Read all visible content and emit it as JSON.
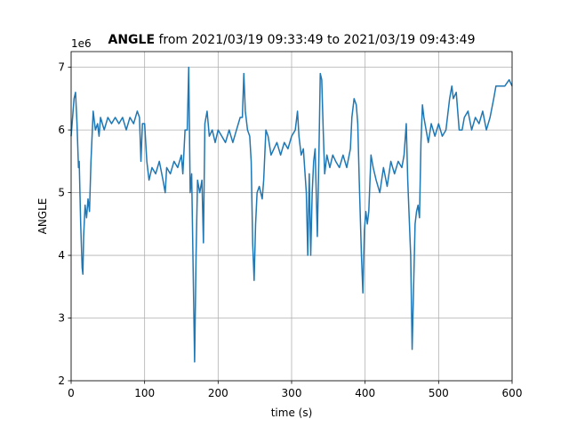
{
  "chart_data": {
    "type": "line",
    "title_bold": "ANGLE",
    "title": " from 2021/03/19 09:33:49 to 2021/03/19 09:43:49",
    "xlabel": "time (s)",
    "ylabel": "ANGLE",
    "offset_text": "1e6",
    "xlim": [
      0,
      600
    ],
    "xticks": [
      0,
      100,
      200,
      300,
      400,
      500,
      600
    ],
    "ylim": [
      2,
      7.25
    ],
    "yticks": [
      2,
      3,
      4,
      5,
      6,
      7
    ],
    "grid": true,
    "x": [
      0,
      2,
      4,
      6,
      8,
      10,
      11,
      13,
      15,
      16,
      17,
      19,
      21,
      23,
      25,
      27,
      30,
      33,
      36,
      38,
      40,
      45,
      50,
      55,
      60,
      65,
      70,
      75,
      80,
      85,
      90,
      93,
      95,
      97,
      100,
      103,
      106,
      110,
      115,
      120,
      125,
      128,
      130,
      135,
      140,
      145,
      150,
      152,
      155,
      158,
      160,
      162,
      164,
      166,
      168,
      170,
      172,
      175,
      178,
      180,
      182,
      185,
      188,
      192,
      196,
      200,
      205,
      210,
      215,
      220,
      225,
      230,
      233,
      235,
      237,
      240,
      243,
      245,
      247,
      249,
      251,
      253,
      256,
      260,
      262,
      265,
      268,
      272,
      276,
      280,
      285,
      290,
      295,
      300,
      305,
      308,
      310,
      313,
      316,
      320,
      322,
      324,
      326,
      328,
      330,
      332,
      335,
      337,
      339,
      341,
      343,
      345,
      348,
      352,
      356,
      360,
      365,
      370,
      375,
      380,
      382,
      385,
      388,
      390,
      392,
      395,
      397,
      399,
      401,
      403,
      405,
      408,
      411,
      415,
      420,
      425,
      430,
      435,
      440,
      445,
      450,
      453,
      456,
      458,
      460,
      462,
      464,
      466,
      468,
      470,
      472,
      474,
      476,
      478,
      480,
      483,
      486,
      490,
      495,
      500,
      505,
      510,
      515,
      518,
      520,
      524,
      528,
      532,
      535,
      540,
      545,
      550,
      555,
      560,
      565,
      570,
      575,
      578,
      580,
      585,
      590,
      596,
      600
    ],
    "series": [
      {
        "name": "ANGLE",
        "color": "#1f77b4",
        "values": [
          5.9,
          6.2,
          6.5,
          6.6,
          6.1,
          5.4,
          5.5,
          4.5,
          3.8,
          3.7,
          4.3,
          4.8,
          4.6,
          4.9,
          4.7,
          5.5,
          6.3,
          6.0,
          6.1,
          5.9,
          6.2,
          6.0,
          6.2,
          6.1,
          6.2,
          6.1,
          6.2,
          6.0,
          6.2,
          6.1,
          6.3,
          6.2,
          5.5,
          6.1,
          6.1,
          5.5,
          5.2,
          5.4,
          5.3,
          5.5,
          5.2,
          5.0,
          5.4,
          5.3,
          5.5,
          5.4,
          5.6,
          5.3,
          6.0,
          6.0,
          7.0,
          5.0,
          5.3,
          3.8,
          2.3,
          4.0,
          5.2,
          5.0,
          5.2,
          4.2,
          6.1,
          6.3,
          5.9,
          6.0,
          5.8,
          6.0,
          5.9,
          5.8,
          6.0,
          5.8,
          6.0,
          6.2,
          6.2,
          6.9,
          6.3,
          6.0,
          5.9,
          5.5,
          4.2,
          3.6,
          4.5,
          5.0,
          5.1,
          4.9,
          5.2,
          6.0,
          5.9,
          5.6,
          5.7,
          5.8,
          5.6,
          5.8,
          5.7,
          5.9,
          6.0,
          6.3,
          5.9,
          5.6,
          5.7,
          5.0,
          4.0,
          5.3,
          4.0,
          5.0,
          5.5,
          5.7,
          4.3,
          5.5,
          6.9,
          6.8,
          6.0,
          5.3,
          5.6,
          5.4,
          5.6,
          5.5,
          5.4,
          5.6,
          5.4,
          5.7,
          6.2,
          6.5,
          6.4,
          6.1,
          5.2,
          4.0,
          3.4,
          4.4,
          4.7,
          4.5,
          4.7,
          5.6,
          5.4,
          5.2,
          5.0,
          5.4,
          5.1,
          5.5,
          5.3,
          5.5,
          5.4,
          5.6,
          6.1,
          5.2,
          4.6,
          4.0,
          2.5,
          3.5,
          4.5,
          4.7,
          4.8,
          4.6,
          5.8,
          6.4,
          6.2,
          6.0,
          5.8,
          6.1,
          5.9,
          6.1,
          5.9,
          6.0,
          6.5,
          6.7,
          6.5,
          6.6,
          6.0,
          6.0,
          6.2,
          6.3,
          6.0,
          6.2,
          6.1,
          6.3,
          6.0,
          6.2,
          6.5,
          6.7,
          6.7,
          6.7,
          6.7,
          6.8,
          6.7
        ]
      }
    ]
  }
}
